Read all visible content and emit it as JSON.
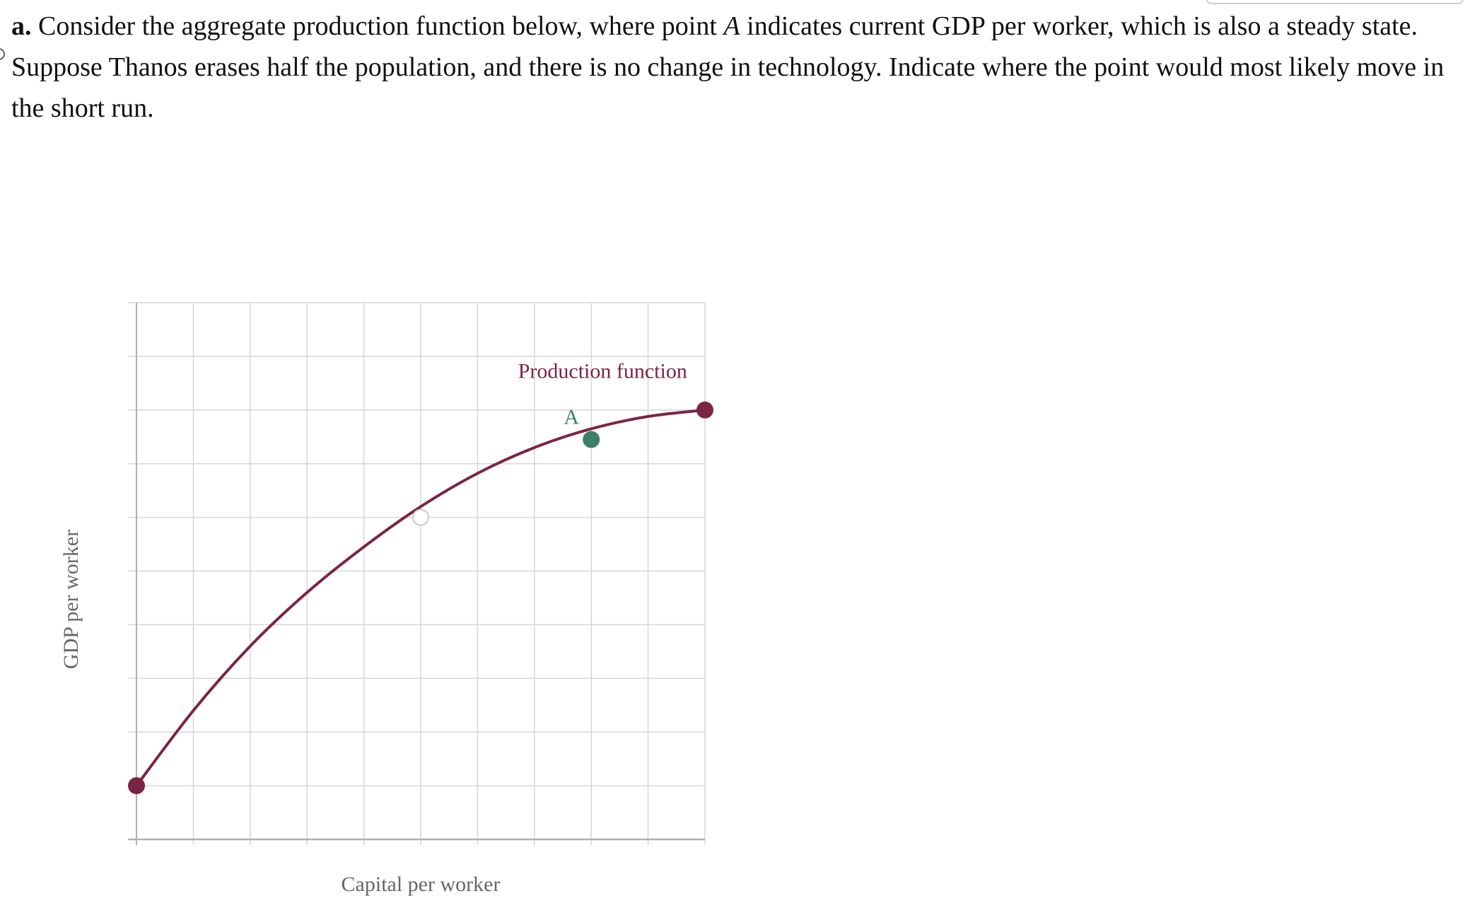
{
  "question": {
    "part_label": "a.",
    "text_1": " Consider the aggregate production function below, where point ",
    "point_ref": "A",
    "text_2": " indicates current GDP per worker, which is also a steady state. Suppose Thanos erases half the population, and there is no change in technology. Indicate where the point would most likely move in the short run."
  },
  "colors": {
    "curve": "#7b2545",
    "point_a": "#3e7f6b",
    "grid": "#d6d6d6",
    "axis": "#b0b0b0",
    "hollow_stroke": "#c8c8c8"
  },
  "chart_data": {
    "type": "line",
    "title": "",
    "xlabel": "Capital per worker",
    "ylabel": "GDP per worker",
    "xlim": [
      0,
      10
    ],
    "ylim": [
      0,
      10
    ],
    "grid": true,
    "x_ticks": [
      0,
      1,
      2,
      3,
      4,
      5,
      6,
      7,
      8,
      9,
      10
    ],
    "y_ticks": [
      0,
      1,
      2,
      3,
      4,
      5,
      6,
      7,
      8,
      9,
      10
    ],
    "series": [
      {
        "name": "Production function",
        "color": "#7b2545",
        "points": [
          {
            "x": 0,
            "y": 1.0
          },
          {
            "x": 1,
            "y": 2.4
          },
          {
            "x": 2,
            "y": 3.6
          },
          {
            "x": 3,
            "y": 4.6
          },
          {
            "x": 4,
            "y": 5.45
          },
          {
            "x": 5,
            "y": 6.2
          },
          {
            "x": 6,
            "y": 6.82
          },
          {
            "x": 7,
            "y": 7.3
          },
          {
            "x": 8,
            "y": 7.65
          },
          {
            "x": 9,
            "y": 7.88
          },
          {
            "x": 10,
            "y": 8.0
          }
        ],
        "endpoints": [
          {
            "x": 0,
            "y": 1.0
          },
          {
            "x": 10,
            "y": 8.0
          }
        ]
      }
    ],
    "points": [
      {
        "label": "A",
        "x": 8,
        "y": 7.45,
        "color": "#3e7f6b"
      }
    ],
    "hollow_points": [
      {
        "x": 5,
        "y": 6.0
      }
    ]
  }
}
